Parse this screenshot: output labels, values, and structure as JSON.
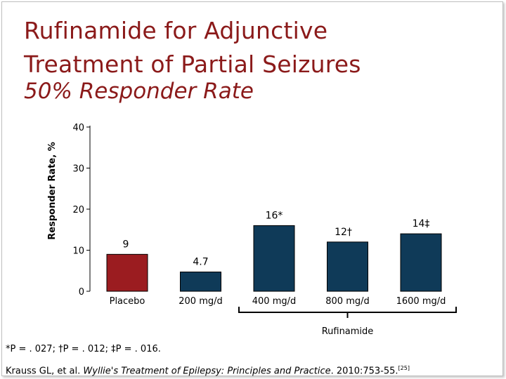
{
  "title_line1": "Rufinamide for Adjunctive",
  "title_line2": "Treatment of Partial Seizures",
  "subtitle": "50% Responder Rate",
  "colors": {
    "title": "#8b1a1a",
    "placebo_bar": "#9b1c20",
    "treatment_bar": "#0f3a58"
  },
  "chart_data": {
    "type": "bar",
    "ylabel": "Responder Rate, %",
    "ylim": [
      0,
      40
    ],
    "yticks": [
      "0",
      "10",
      "20",
      "30",
      "40"
    ],
    "categories": [
      "Placebo",
      "200 mg/d",
      "400 mg/d",
      "800 mg/d",
      "1600 mg/d"
    ],
    "values": [
      9,
      4.7,
      16,
      12,
      14
    ],
    "data_labels": [
      "9",
      "4.7",
      "16*",
      "12†",
      "14‡"
    ],
    "group_label": "Rufinamide",
    "grid": false
  },
  "footnote": "*P = . 027; †P = . 012; ‡P = . 016.",
  "citation": {
    "authors": "Krauss GL, et al. ",
    "journal": "Wyllie's Treatment of Epilepsy: Principles and Practice",
    "details": ". 2010:753-55.",
    "ref": "[25]"
  }
}
